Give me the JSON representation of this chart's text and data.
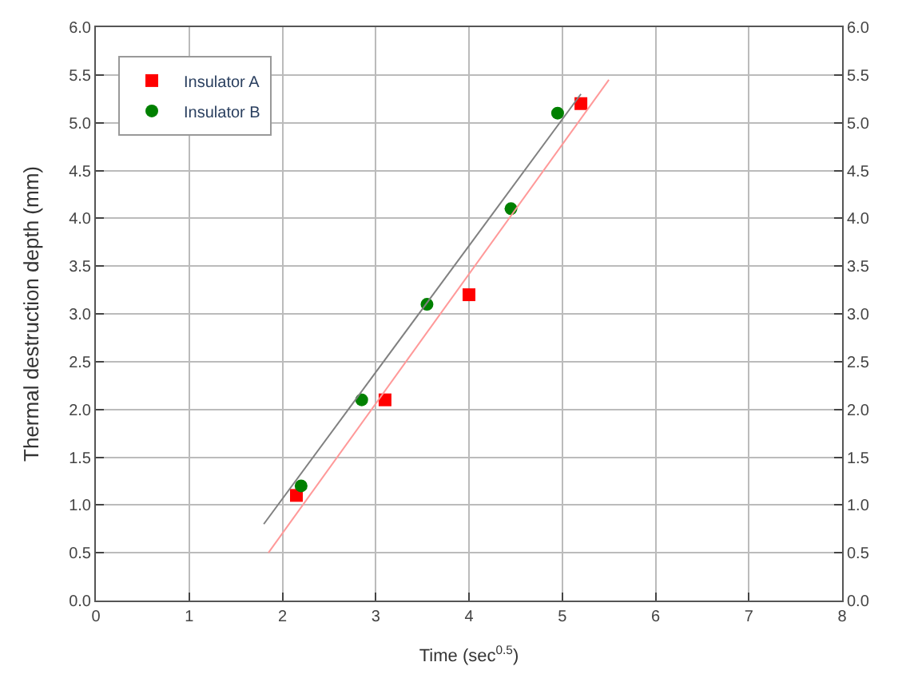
{
  "chart_data": {
    "type": "scatter",
    "xlabel": "Time (sec$^{0.5}$)",
    "ylabel": "Thermal destruction depth (mm)",
    "xlim": [
      0,
      8
    ],
    "xticks": [
      0,
      1,
      2,
      3,
      4,
      5,
      6,
      7,
      8
    ],
    "ylim": [
      0,
      6
    ],
    "yticks": [
      {
        "value": 0,
        "label": "0.0"
      },
      0.5,
      {
        "value": 1,
        "label": "1.0"
      },
      1.5,
      {
        "value": 2,
        "label": "2.0"
      },
      2.5,
      {
        "value": 3,
        "label": "3.0"
      },
      3.5,
      {
        "value": 4,
        "label": "4.0"
      },
      4.5,
      {
        "value": 5,
        "label": "5.0"
      },
      5.5,
      {
        "value": 6,
        "label": "6.0"
      }
    ],
    "y2lim": [
      0,
      6
    ],
    "y2ticks": [
      {
        "value": 0,
        "label": "0.0"
      },
      0.5,
      {
        "value": 1,
        "label": "1.0"
      },
      1.5,
      {
        "value": 2,
        "label": "2.0"
      },
      2.5,
      {
        "value": 3,
        "label": "3.0"
      },
      3.5,
      {
        "value": 4,
        "label": "4.0"
      },
      4.5,
      {
        "value": 5,
        "label": "5.0"
      },
      5.5,
      {
        "value": 6,
        "label": "6.0"
      }
    ],
    "grid": true,
    "legend": "top left",
    "series": [
      {
        "name": "Insulator A",
        "marker": "square",
        "color": "#ff0000",
        "x": [
          2.15,
          3.1,
          4.0,
          5.2
        ],
        "values": [
          1.1,
          2.1,
          3.2,
          5.2
        ]
      },
      {
        "name": "Insulator B",
        "marker": "circle",
        "color": "#008000",
        "x": [
          2.2,
          2.85,
          3.55,
          4.45,
          4.95
        ],
        "values": [
          1.2,
          2.1,
          3.1,
          4.1,
          5.1
        ]
      },
      {
        "type": "line",
        "color": "#ff9999",
        "x": [
          1.85,
          5.5
        ],
        "values": [
          0.5,
          5.45
        ]
      },
      {
        "type": "line",
        "color": "#808080",
        "x": [
          1.8,
          5.2
        ],
        "values": [
          0.8,
          5.3
        ]
      }
    ]
  }
}
